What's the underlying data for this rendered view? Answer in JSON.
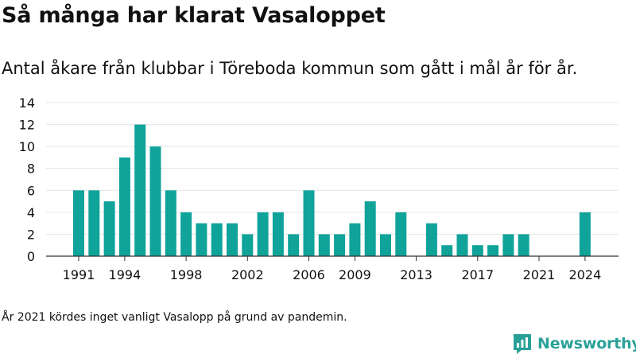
{
  "header": {
    "title": "Så många har klarat Vasaloppet",
    "subtitle": "Antal åkare från klubbar i Töreboda kommun som gått i mål år för år."
  },
  "footer": {
    "note": "År 2021 kördes inget vanligt Vasalopp på grund av pandemin.",
    "brand": "Newsworthy",
    "brand_icon": "newsworthy-logo-icon"
  },
  "colors": {
    "bar": "#0fa39a",
    "brand": "#2aa198",
    "grid": "#e4e4e4",
    "axis": "#333333"
  },
  "chart_data": {
    "type": "bar",
    "x": [
      1991,
      1992,
      1993,
      1994,
      1995,
      1996,
      1997,
      1998,
      1999,
      2000,
      2001,
      2002,
      2003,
      2004,
      2005,
      2006,
      2007,
      2008,
      2009,
      2010,
      2011,
      2012,
      2013,
      2014,
      2015,
      2016,
      2017,
      2018,
      2019,
      2020,
      2021,
      2022,
      2023,
      2024
    ],
    "values": [
      6,
      6,
      5,
      9,
      12,
      10,
      6,
      4,
      3,
      3,
      3,
      2,
      4,
      4,
      2,
      6,
      2,
      2,
      3,
      5,
      2,
      4,
      0,
      3,
      1,
      2,
      1,
      1,
      2,
      2,
      0,
      0,
      0,
      4
    ],
    "x_ticks": [
      1991,
      1994,
      1998,
      2002,
      2006,
      2009,
      2013,
      2017,
      2021,
      2024
    ],
    "y_ticks": [
      0,
      2,
      4,
      6,
      8,
      10,
      12,
      14
    ],
    "ylim": [
      0,
      14
    ],
    "xlabel": "",
    "ylabel": "",
    "grid": true
  }
}
